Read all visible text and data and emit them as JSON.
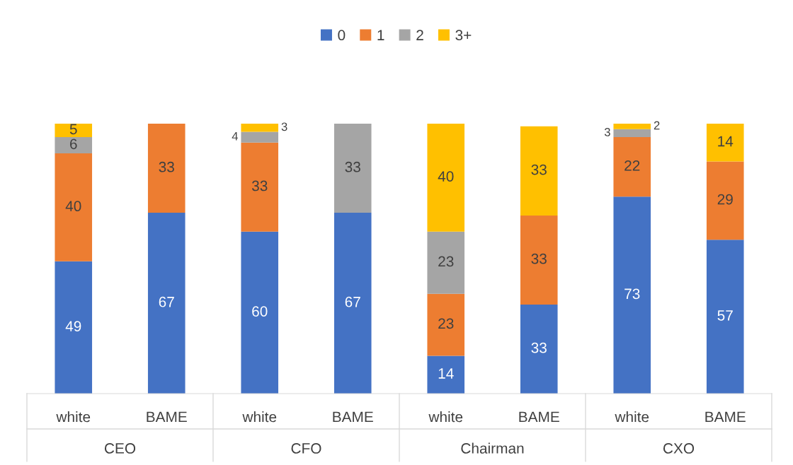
{
  "chart_data": {
    "type": "bar",
    "stacked": true,
    "data_labels": true,
    "legend": "top",
    "grid": false,
    "categories": [
      "white",
      "BAME",
      "white",
      "BAME",
      "white",
      "BAME",
      "white",
      "BAME"
    ],
    "series": [
      {
        "name": "0",
        "color": "#4472c4",
        "values": [
          49,
          67,
          60,
          67,
          14,
          33,
          73,
          57
        ]
      },
      {
        "name": "1",
        "color": "#ed7d31",
        "values": [
          40,
          33,
          33,
          null,
          23,
          33,
          22,
          29
        ]
      },
      {
        "name": "2",
        "color": "#a5a5a5",
        "values": [
          6,
          null,
          4,
          33,
          23,
          null,
          3,
          null
        ]
      },
      {
        "name": "3+",
        "color": "#ffc000",
        "values": [
          5,
          null,
          3,
          null,
          40,
          33,
          2,
          14
        ]
      }
    ],
    "annotations": [
      "CEO",
      "CFO",
      "Chairman",
      "CXO"
    ]
  }
}
